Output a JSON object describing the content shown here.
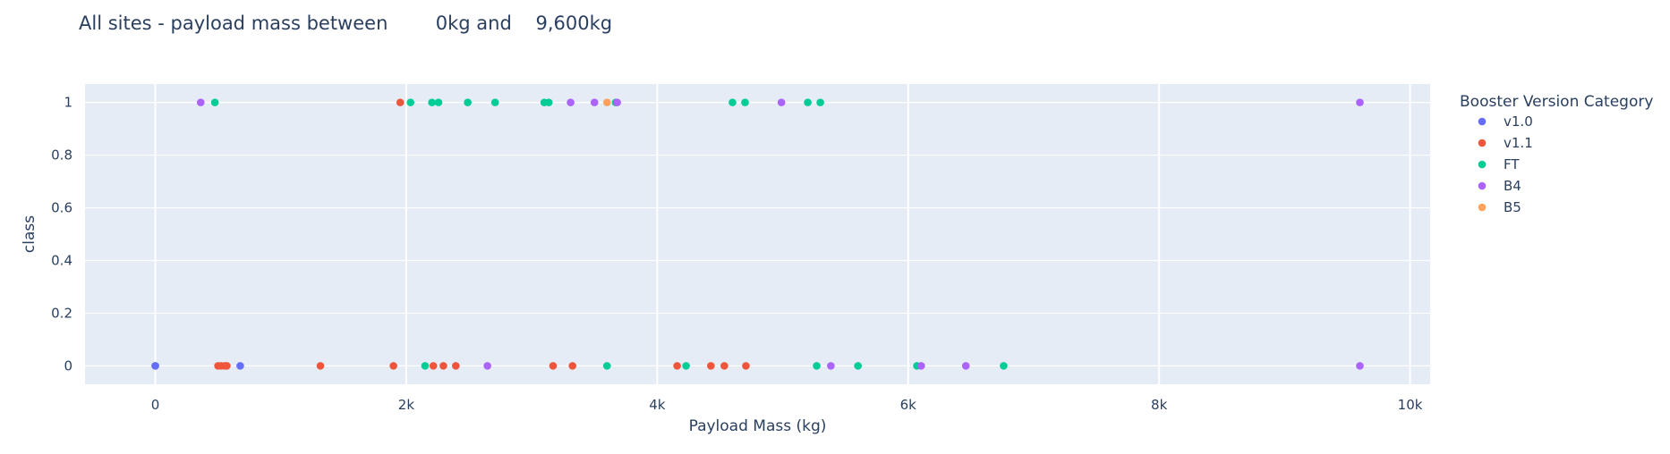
{
  "chart_data": {
    "type": "scatter",
    "title": "All sites - payload mass between        0kg and    9,600kg",
    "xlabel": "Payload Mass (kg)",
    "ylabel": "class",
    "xlim": [
      -560,
      10160
    ],
    "ylim": [
      -0.07,
      1.07
    ],
    "x_ticks": [
      0,
      2000,
      4000,
      6000,
      8000,
      10000
    ],
    "x_tick_labels": [
      "0",
      "2k",
      "4k",
      "6k",
      "8k",
      "10k"
    ],
    "y_ticks": [
      0,
      0.2,
      0.4,
      0.6,
      0.8,
      1
    ],
    "y_tick_labels": [
      "0",
      "0.2",
      "0.4",
      "0.6",
      "0.8",
      "1"
    ],
    "grid": true,
    "legend": {
      "title": "Booster Version Category",
      "placement": "right"
    },
    "series": [
      {
        "name": "v1.0",
        "color": "#636efa",
        "points": [
          [
            0,
            0
          ],
          [
            0,
            0
          ],
          [
            677,
            0
          ]
        ]
      },
      {
        "name": "v1.1",
        "color": "#ef553b",
        "points": [
          [
            1952,
            1
          ],
          [
            500,
            0
          ],
          [
            525,
            0
          ],
          [
            553,
            0
          ],
          [
            570,
            0
          ],
          [
            1316,
            0
          ],
          [
            1898,
            0
          ],
          [
            2216,
            0
          ],
          [
            2296,
            0
          ],
          [
            2395,
            0
          ],
          [
            3170,
            0
          ],
          [
            3325,
            0
          ],
          [
            4159,
            0
          ],
          [
            4428,
            0
          ],
          [
            4535,
            0
          ],
          [
            4707,
            0
          ]
        ]
      },
      {
        "name": "FT",
        "color": "#00cc96",
        "points": [
          [
            475,
            1
          ],
          [
            2034,
            1
          ],
          [
            2205,
            1
          ],
          [
            2257,
            1
          ],
          [
            2490,
            1
          ],
          [
            2708,
            1
          ],
          [
            3100,
            1
          ],
          [
            3136,
            1
          ],
          [
            3669,
            1
          ],
          [
            4600,
            1
          ],
          [
            4700,
            1
          ],
          [
            5200,
            1
          ],
          [
            5300,
            1
          ],
          [
            2150,
            0
          ],
          [
            3600,
            0
          ],
          [
            4230,
            0
          ],
          [
            5271,
            0
          ],
          [
            5600,
            0
          ],
          [
            6070,
            0
          ],
          [
            6761,
            0
          ]
        ]
      },
      {
        "name": "B4",
        "color": "#ab63fa",
        "points": [
          [
            362,
            1
          ],
          [
            3310,
            1
          ],
          [
            3500,
            1
          ],
          [
            3681,
            1
          ],
          [
            4990,
            1
          ],
          [
            9600,
            1
          ],
          [
            2647,
            0
          ],
          [
            5384,
            0
          ],
          [
            6104,
            0
          ],
          [
            6460,
            0
          ],
          [
            9600,
            0
          ]
        ]
      },
      {
        "name": "B5",
        "color": "#ffa15a",
        "points": [
          [
            3600,
            1
          ]
        ]
      }
    ]
  }
}
